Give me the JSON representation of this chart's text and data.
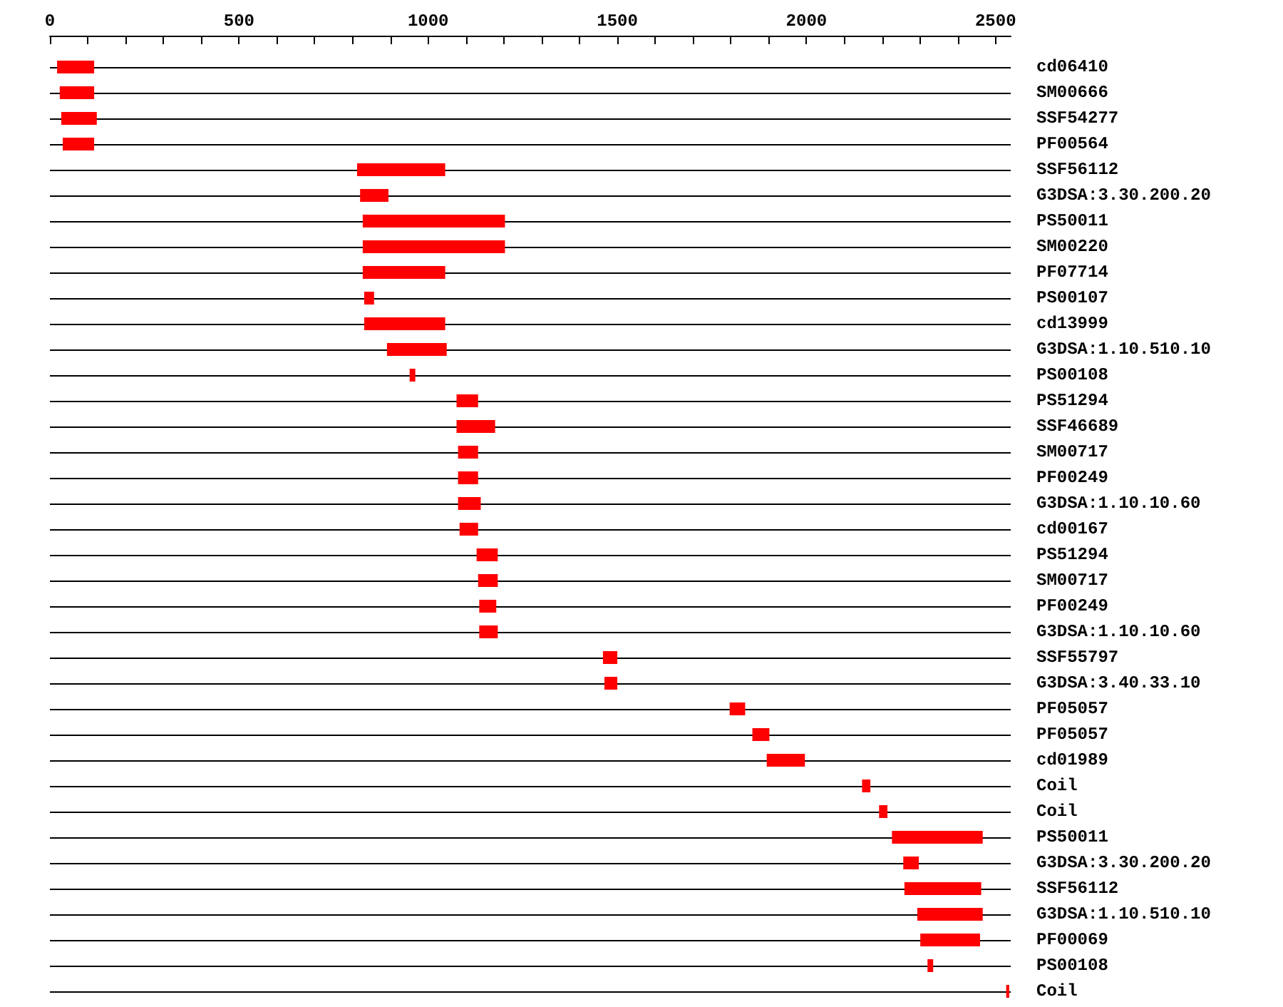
{
  "chart_data": {
    "type": "bar",
    "orientation": "horizontal",
    "grid": "y",
    "categories": [
      "cd06410",
      "SM00666",
      "SSF54277",
      "PF00564",
      "SSF56112",
      "G3DSA:3.30.200.20",
      "PS50011",
      "SM00220",
      "PF07714",
      "PS00107",
      "cd13999",
      "G3DSA:1.10.510.10",
      "PS00108",
      "PS51294",
      "SSF46689",
      "SM00717",
      "PF00249",
      "G3DSA:1.10.10.60",
      "cd00167",
      "PS51294",
      "SM00717",
      "PF00249",
      "G3DSA:1.10.10.60",
      "SSF55797",
      "G3DSA:3.40.33.10",
      "PF05057",
      "PF05057",
      "cd01989",
      "Coil",
      "Coil",
      "PS50011",
      "G3DSA:3.30.200.20",
      "SSF56112",
      "G3DSA:1.10.510.10",
      "PF00069",
      "PS00108",
      "Coil"
    ],
    "base": [
      19,
      26,
      30,
      34,
      812,
      820,
      827,
      827,
      827,
      831,
      831,
      891,
      951,
      1075,
      1075,
      1079,
      1079,
      1079,
      1083,
      1128,
      1132,
      1135,
      1135,
      1462,
      1466,
      1797,
      1857,
      1895,
      2147,
      2192,
      2226,
      2256,
      2259,
      2293,
      2301,
      2320,
      2528
    ],
    "values": [
      98,
      91,
      94,
      83,
      233,
      75,
      376,
      376,
      218,
      26,
      214,
      158,
      15,
      57,
      102,
      53,
      53,
      60,
      49,
      56,
      52,
      45,
      49,
      38,
      34,
      41,
      45,
      101,
      22,
      22,
      240,
      41,
      203,
      173,
      158,
      15,
      8
    ],
    "color": "#ff0000",
    "xlim": [
      0,
      2540
    ],
    "xticks": [
      0,
      {
        "value": 100,
        "label": null
      },
      {
        "value": 200,
        "label": null
      },
      {
        "value": 300,
        "label": null
      },
      {
        "value": 400,
        "label": null
      },
      500,
      {
        "value": 600,
        "label": null
      },
      {
        "value": 700,
        "label": null
      },
      {
        "value": 800,
        "label": null
      },
      {
        "value": 900,
        "label": null
      },
      1000,
      {
        "value": 1100,
        "label": null
      },
      {
        "value": 1200,
        "label": null
      },
      {
        "value": 1300,
        "label": null
      },
      {
        "value": 1400,
        "label": null
      },
      1500,
      {
        "value": 1600,
        "label": null
      },
      {
        "value": 1700,
        "label": null
      },
      {
        "value": 1800,
        "label": null
      },
      {
        "value": 1900,
        "label": null
      },
      2000,
      {
        "value": 2100,
        "label": null
      },
      {
        "value": 2200,
        "label": null
      },
      {
        "value": 2300,
        "label": null
      },
      {
        "value": 2400,
        "label": null
      },
      2500
    ]
  }
}
